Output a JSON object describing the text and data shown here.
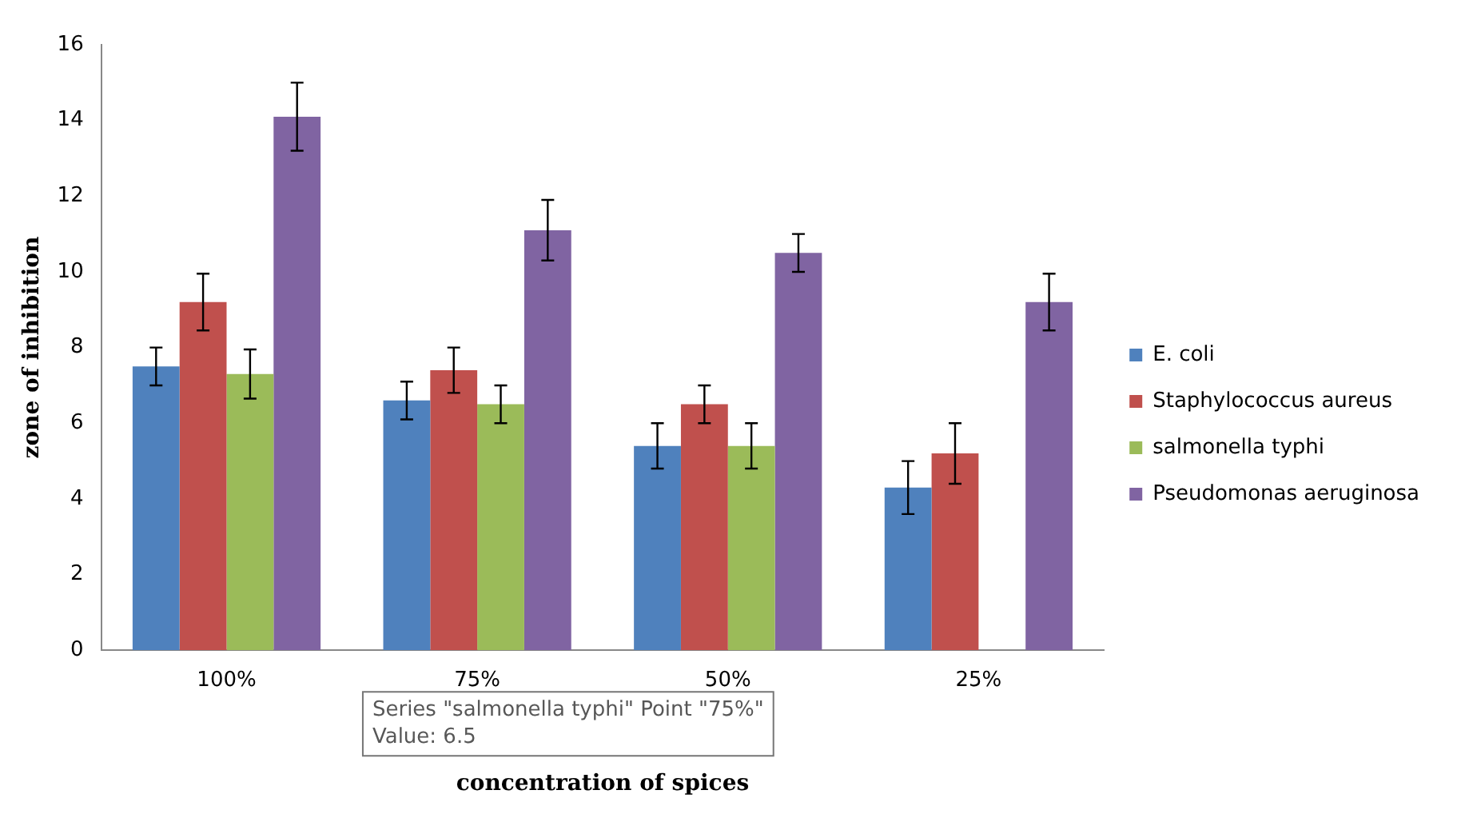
{
  "chart_data": {
    "type": "bar",
    "xlabel": "concentration of spices",
    "ylabel": "zone of inhibition",
    "categories": [
      "100%",
      "75%",
      "50%",
      "25%"
    ],
    "series": [
      {
        "name": "E. coli",
        "color": "#4f81bd",
        "values": [
          7.5,
          6.6,
          5.4,
          4.3
        ],
        "errors": [
          0.5,
          0.5,
          0.6,
          0.7
        ]
      },
      {
        "name": "Staphylococcus aureus",
        "color": "#c0504d",
        "values": [
          9.2,
          7.4,
          6.5,
          5.2
        ],
        "errors": [
          0.75,
          0.6,
          0.5,
          0.8
        ]
      },
      {
        "name": "salmonella typhi",
        "color": "#9bbb59",
        "values": [
          7.3,
          6.5,
          5.4,
          null
        ],
        "errors": [
          0.65,
          0.5,
          0.6,
          null
        ]
      },
      {
        "name": "Pseudomonas aeruginosa",
        "color": "#8064a2",
        "values": [
          14.1,
          11.1,
          10.5,
          9.2
        ],
        "errors": [
          0.9,
          0.8,
          0.5,
          0.75
        ]
      }
    ],
    "ylim": [
      0,
      16
    ],
    "yticks": [
      0,
      2,
      4,
      6,
      8,
      10,
      12,
      14,
      16
    ],
    "grid": false,
    "legend": "right",
    "annotations": [
      "Series \"salmonella typhi\" Point \"75%\"\nValue: 6.5"
    ]
  }
}
